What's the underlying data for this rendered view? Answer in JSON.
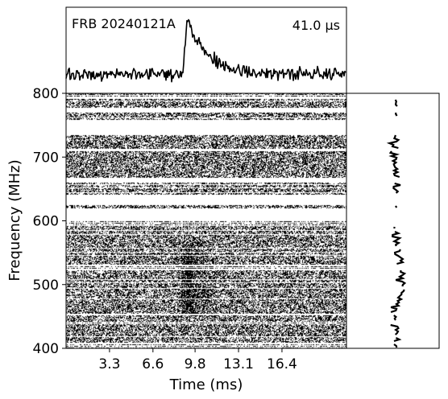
{
  "chart_data": {
    "type": "heatmap",
    "burst_label": "FRB 20240121A",
    "time_resolution_label": "41.0 μs",
    "xlabel": "Time (ms)",
    "ylabel": "Frequency (MHz)",
    "xlim": [
      0,
      21.3
    ],
    "ylim": [
      400,
      800
    ],
    "xticks": [
      3.3,
      6.6,
      9.8,
      13.1,
      16.4
    ],
    "yticks": [
      400,
      500,
      600,
      700,
      800
    ],
    "pulse_time_ms": 9.1,
    "emission_band_mhz": [
      460,
      560
    ],
    "flagged_bands_mhz": [
      [
        600,
        620
      ],
      [
        625,
        642
      ],
      [
        660,
        668
      ],
      [
        735,
        758
      ],
      [
        770,
        778
      ]
    ],
    "panels": {
      "top": "frequency-averaged time series",
      "right": "time-averaged spectrum"
    }
  }
}
